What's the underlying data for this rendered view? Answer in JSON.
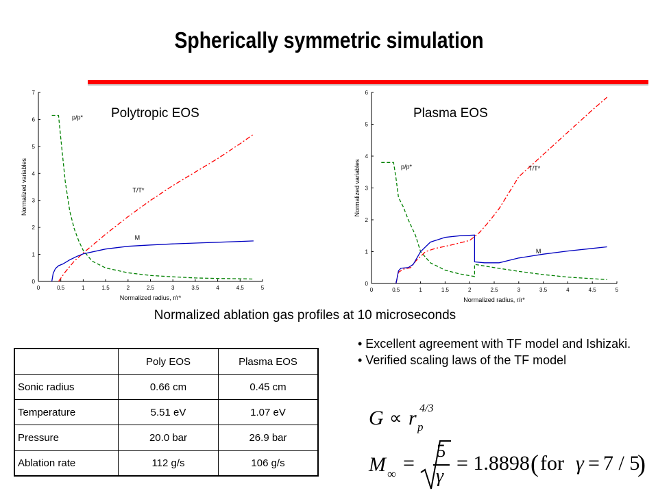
{
  "slide": {
    "title": "Spherically symmetric simulation",
    "caption": "Normalized ablation gas profiles at 10 microseconds",
    "accent_color": "#ff0000"
  },
  "chart_data": [
    {
      "type": "line",
      "title": "Polytropic EOS",
      "xlabel": "Normalized radius,  r/r*",
      "ylabel": "Normalized variables",
      "xlim": [
        0,
        5
      ],
      "ylim": [
        0,
        7
      ],
      "xticks": [
        "0",
        "0.5",
        "1",
        "1.5",
        "2",
        "2.5",
        "3",
        "3.5",
        "4",
        "4.5",
        "5"
      ],
      "yticks": [
        "0",
        "1",
        "2",
        "3",
        "4",
        "5",
        "6",
        "7"
      ],
      "grid": false,
      "annotations": [
        "p/p*",
        "T/T*",
        "M"
      ],
      "series": [
        {
          "name": "p/p*",
          "color": "#008000",
          "dash": "dashed",
          "x": [
            0.3,
            0.45,
            0.5,
            0.6,
            0.7,
            0.8,
            0.9,
            1.0,
            1.2,
            1.5,
            2.0,
            2.5,
            3.0,
            3.5,
            4.0,
            4.5,
            4.8
          ],
          "y": [
            6.15,
            6.15,
            5.3,
            3.7,
            2.6,
            1.95,
            1.5,
            1.15,
            0.75,
            0.5,
            0.32,
            0.22,
            0.17,
            0.13,
            0.11,
            0.1,
            0.09
          ]
        },
        {
          "name": "T/T*",
          "color": "#ff0000",
          "dash": "dashdot",
          "x": [
            0.45,
            0.6,
            0.8,
            1.0,
            1.5,
            2.0,
            2.5,
            3.0,
            3.5,
            4.0,
            4.5,
            4.8
          ],
          "y": [
            0.0,
            0.35,
            0.75,
            1.05,
            1.75,
            2.4,
            3.0,
            3.55,
            4.05,
            4.55,
            5.1,
            5.45
          ]
        },
        {
          "name": "M",
          "color": "#0000c0",
          "dash": "solid",
          "x": [
            0.3,
            0.33,
            0.38,
            0.45,
            0.55,
            0.7,
            0.85,
            1.0,
            1.5,
            2.0,
            2.5,
            3.0,
            3.5,
            4.0,
            4.5,
            4.8
          ],
          "y": [
            0.0,
            0.3,
            0.48,
            0.58,
            0.65,
            0.8,
            0.92,
            1.02,
            1.2,
            1.3,
            1.35,
            1.39,
            1.42,
            1.45,
            1.48,
            1.5
          ]
        }
      ]
    },
    {
      "type": "line",
      "title": "Plasma EOS",
      "xlabel": "Normalized radius,  r/r*",
      "ylabel": "Normalized variables",
      "xlim": [
        0,
        5
      ],
      "ylim": [
        0,
        6
      ],
      "xticks": [
        "0",
        "0.5",
        "1",
        "1.5",
        "2",
        "2.5",
        "3",
        "3.5",
        "4",
        "4.5",
        "5"
      ],
      "yticks": [
        "0",
        "1",
        "2",
        "3",
        "4",
        "5",
        "6"
      ],
      "grid": false,
      "annotations": [
        "p/p*",
        "T/T*",
        "M"
      ],
      "series": [
        {
          "name": "p/p*",
          "color": "#008000",
          "dash": "dashed",
          "x": [
            0.2,
            0.45,
            0.5,
            0.55,
            0.65,
            0.75,
            0.9,
            1.0,
            1.2,
            1.5,
            1.8,
            2.1,
            2.1,
            2.5,
            3.0,
            3.5,
            4.0,
            4.5,
            4.8
          ],
          "y": [
            3.8,
            3.8,
            3.3,
            2.7,
            2.4,
            2.0,
            1.5,
            1.0,
            0.65,
            0.42,
            0.3,
            0.22,
            0.6,
            0.5,
            0.38,
            0.28,
            0.2,
            0.15,
            0.12
          ]
        },
        {
          "name": "T/T*",
          "color": "#ff0000",
          "dash": "dashdot",
          "x": [
            0.5,
            0.55,
            0.65,
            0.8,
            0.9,
            1.1,
            1.3,
            1.6,
            2.0,
            2.2,
            2.4,
            2.6,
            2.8,
            3.0,
            3.5,
            4.0,
            4.5,
            4.8
          ],
          "y": [
            0.0,
            0.35,
            0.45,
            0.5,
            0.7,
            1.0,
            1.1,
            1.2,
            1.35,
            1.6,
            1.95,
            2.35,
            2.85,
            3.35,
            4.05,
            4.75,
            5.45,
            5.85
          ]
        },
        {
          "name": "M",
          "color": "#0000c0",
          "dash": "solid",
          "x": [
            0.5,
            0.55,
            0.6,
            0.75,
            0.85,
            1.0,
            1.2,
            1.5,
            1.8,
            2.1,
            2.1,
            2.3,
            2.6,
            3.0,
            3.5,
            4.0,
            4.5,
            4.8
          ],
          "y": [
            0.0,
            0.4,
            0.48,
            0.5,
            0.6,
            1.0,
            1.3,
            1.45,
            1.5,
            1.52,
            0.68,
            0.65,
            0.65,
            0.8,
            0.92,
            1.02,
            1.1,
            1.15
          ]
        }
      ]
    }
  ],
  "table": {
    "headers": [
      "",
      "Poly EOS",
      "Plasma EOS"
    ],
    "rows": [
      [
        "Sonic radius",
        "0.66 cm",
        "0.45 cm"
      ],
      [
        "Temperature",
        "5.51 eV",
        "1.07 eV"
      ],
      [
        "Pressure",
        "20.0 bar",
        "26.9 bar"
      ],
      [
        "Ablation rate",
        "112 g/s",
        "106 g/s"
      ]
    ]
  },
  "notes": [
    "• Excellent agreement with TF model and Ishizaki.",
    "• Verified scaling laws of the TF model"
  ],
  "formulas": {
    "f1": {
      "lhs": "G",
      "rel": "∝",
      "base": "r",
      "sub": "p",
      "exp": "4/3"
    },
    "f2": {
      "lhs": "M",
      "lhs_sub": "∞",
      "eq": "=",
      "num": "5",
      "den": "γ",
      "value": "= 1.8898",
      "paren_open": "(",
      "for": "for",
      "gamma": "γ",
      "eq2": "=",
      "gamma_value": "7 / 5",
      "paren_close": ")"
    }
  }
}
